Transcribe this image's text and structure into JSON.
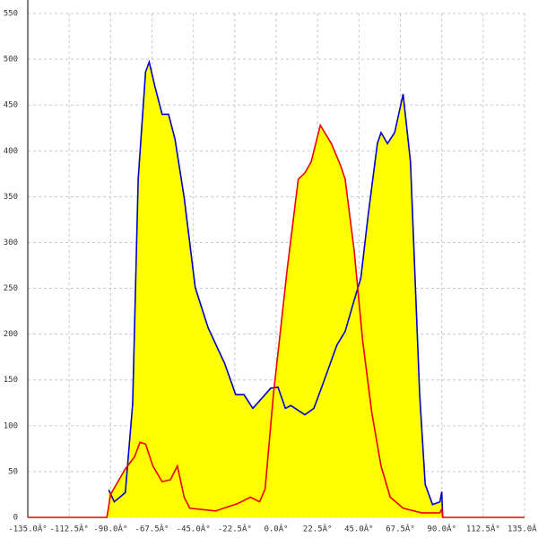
{
  "chart_data": {
    "type": "area",
    "xlim": [
      -135,
      135
    ],
    "ylim": [
      0,
      550
    ],
    "xticks": [
      {
        "value": -135,
        "label": "-135.0Â°"
      },
      {
        "value": -112.5,
        "label": "-112.5Â°"
      },
      {
        "value": -90,
        "label": "-90.0Â°"
      },
      {
        "value": -67.5,
        "label": "-67.5Â°"
      },
      {
        "value": -45,
        "label": "-45.0Â°"
      },
      {
        "value": -22.5,
        "label": "-22.5Â°"
      },
      {
        "value": 0,
        "label": "0.0Â°"
      },
      {
        "value": 22.5,
        "label": "22.5Â°"
      },
      {
        "value": 45,
        "label": "45.0Â°"
      },
      {
        "value": 67.5,
        "label": "67.5Â°"
      },
      {
        "value": 90,
        "label": "90.0Â°"
      },
      {
        "value": 112.5,
        "label": "112.5Â°"
      },
      {
        "value": 135,
        "label": "135.0Â°"
      }
    ],
    "yticks": [
      0,
      50,
      100,
      150,
      200,
      250,
      300,
      350,
      400,
      450,
      500,
      550
    ],
    "grid": true,
    "fill_color": "#ffff00",
    "series": [
      {
        "color": "#0000cc",
        "x": [
          -91,
          -88,
          -82,
          -78,
          -75,
          -71,
          -69,
          -66,
          -62,
          -58.5,
          -55,
          -50,
          -44,
          -37,
          -28,
          -22,
          -17.5,
          -12.7,
          -6,
          -3,
          1,
          5,
          8,
          15.6,
          20.5,
          26,
          33,
          37.5,
          42.4,
          46,
          50,
          55,
          57,
          60.5,
          64.4,
          69,
          73,
          78,
          81,
          85,
          89,
          90,
          90.5
        ],
        "values": [
          30,
          17,
          27,
          124,
          369,
          486,
          497,
          471,
          440,
          440,
          413,
          349,
          251,
          207,
          168,
          134,
          134,
          119,
          134,
          141,
          142,
          119,
          122,
          112,
          119,
          149,
          188,
          203,
          237,
          261,
          330,
          408,
          420,
          408,
          420,
          462,
          388,
          134,
          36,
          14,
          17,
          28,
          0
        ]
      },
      {
        "color": "#ee0000",
        "x": [
          -135,
          -92,
          -90,
          -82,
          -77,
          -74,
          -71,
          -67,
          -62,
          -57.5,
          -53.7,
          -50,
          -47,
          -33,
          -21,
          -14,
          -9,
          -6,
          -1.5,
          6,
          12,
          15.6,
          19,
          24,
          30,
          35,
          37.5,
          42.4,
          47,
          52,
          57,
          62,
          69,
          79,
          89,
          90,
          90.5,
          135
        ],
        "values": [
          0,
          0,
          25,
          53,
          66,
          82,
          80,
          56,
          39,
          41,
          56,
          22,
          10,
          7,
          15,
          22,
          17,
          31,
          134,
          271,
          369,
          376,
          388,
          428,
          408,
          384,
          369,
          291,
          193,
          114,
          56,
          22,
          10,
          5,
          5,
          9,
          0,
          0
        ]
      }
    ]
  }
}
